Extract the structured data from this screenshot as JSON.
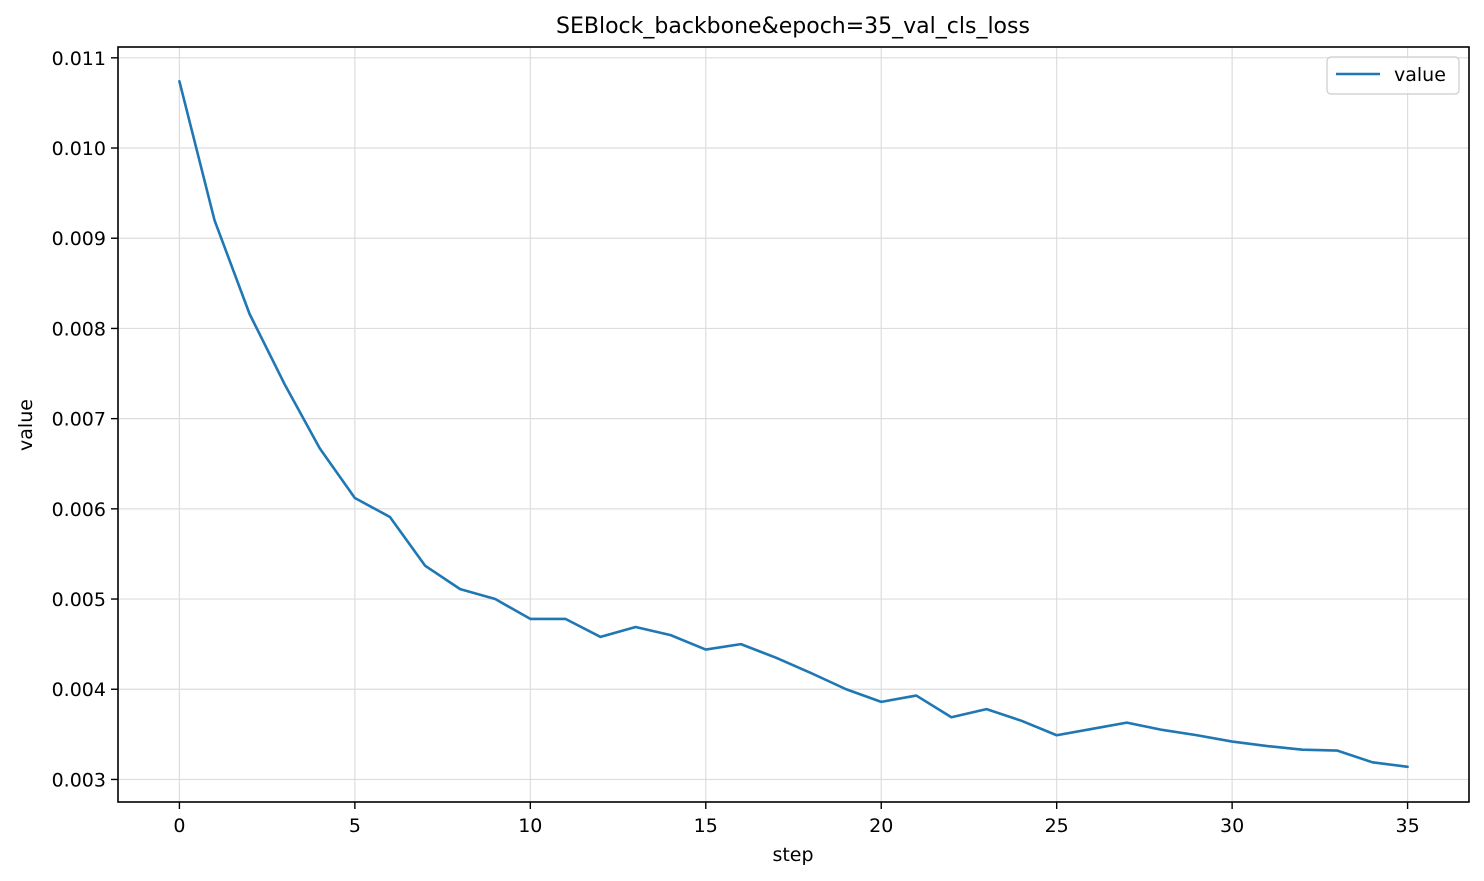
{
  "chart_data": {
    "type": "line",
    "title": "SEBlock_backbone&epoch=35_val_cls_loss",
    "xlabel": "step",
    "ylabel": "value",
    "xlim": [
      -1.75,
      36.75
    ],
    "ylim": [
      0.00275,
      0.01112
    ],
    "xticks": [
      0,
      5,
      10,
      15,
      20,
      25,
      30,
      35
    ],
    "xtick_labels": [
      "0",
      "5",
      "10",
      "15",
      "20",
      "25",
      "30",
      "35"
    ],
    "yticks": [
      0.003,
      0.004,
      0.005,
      0.006,
      0.007,
      0.008,
      0.009,
      0.01,
      0.011
    ],
    "ytick_labels": [
      "0.003",
      "0.004",
      "0.005",
      "0.006",
      "0.007",
      "0.008",
      "0.009",
      "0.010",
      "0.011"
    ],
    "grid": true,
    "legend": "top-right",
    "series": [
      {
        "name": "value",
        "color": "#1f77b4",
        "x": [
          0,
          1,
          2,
          3,
          4,
          5,
          6,
          7,
          8,
          9,
          10,
          11,
          12,
          13,
          14,
          15,
          16,
          17,
          18,
          19,
          20,
          21,
          22,
          23,
          24,
          25,
          26,
          27,
          28,
          29,
          30,
          31,
          32,
          33,
          34,
          35
        ],
        "y": [
          0.01074,
          0.0092,
          0.00816,
          0.00738,
          0.00667,
          0.00612,
          0.00591,
          0.00537,
          0.00511,
          0.005,
          0.00478,
          0.00478,
          0.00458,
          0.00469,
          0.0046,
          0.00444,
          0.0045,
          0.00435,
          0.00418,
          0.004,
          0.00386,
          0.00393,
          0.00369,
          0.00378,
          0.00365,
          0.00349,
          0.00356,
          0.00363,
          0.00355,
          0.00349,
          0.00342,
          0.00337,
          0.00333,
          0.00332,
          0.00319,
          0.00314
        ]
      }
    ]
  }
}
